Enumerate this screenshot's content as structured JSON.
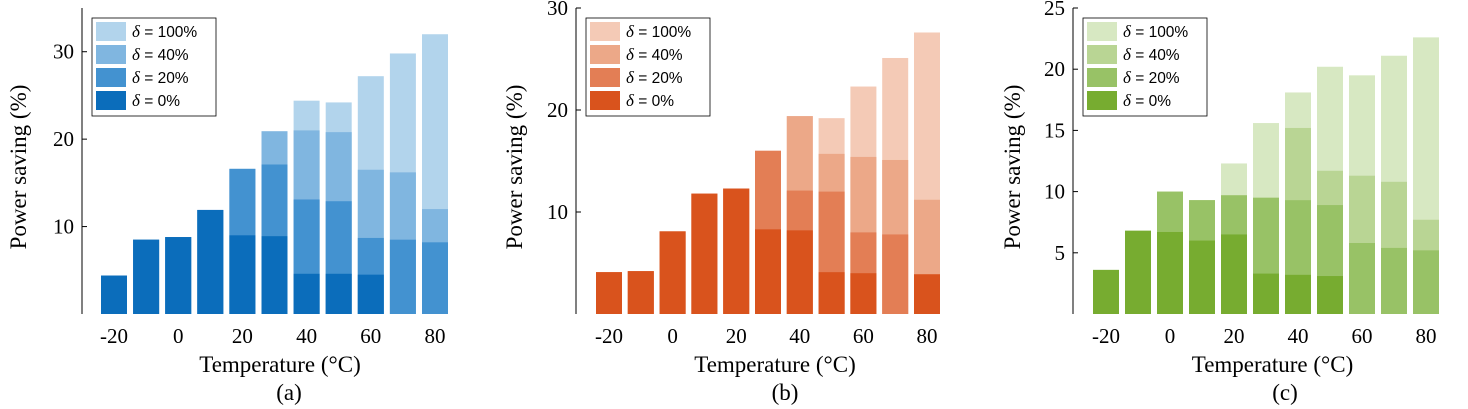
{
  "chart_data": [
    {
      "type": "bar",
      "caption": "(a)",
      "xlabel": "Temperature (°C)",
      "ylabel": "Power saving (%)",
      "x": [
        -20,
        -10,
        0,
        10,
        20,
        30,
        40,
        50,
        60,
        70,
        80
      ],
      "xticks": [
        -20,
        0,
        20,
        40,
        60,
        80
      ],
      "yticks": [
        10,
        20,
        30
      ],
      "ylim": [
        0,
        35
      ],
      "legend_position": "top-left",
      "series": [
        {
          "name": "δ = 100%",
          "color": "#b2d4ec",
          "values": [
            4.4,
            8.5,
            8.8,
            11.9,
            16.6,
            20.9,
            24.4,
            24.2,
            27.2,
            29.8,
            32.0
          ]
        },
        {
          "name": "δ = 40%",
          "color": "#80b6e0",
          "values": [
            4.4,
            8.5,
            8.8,
            11.9,
            16.6,
            20.9,
            21.0,
            20.8,
            16.5,
            16.2,
            12.0
          ]
        },
        {
          "name": "δ = 20%",
          "color": "#4392d0",
          "values": [
            4.4,
            8.5,
            8.8,
            11.9,
            16.6,
            17.1,
            13.1,
            12.9,
            8.7,
            8.5,
            8.2
          ]
        },
        {
          "name": "δ = 0%",
          "color": "#0b6dbb",
          "values": [
            4.4,
            8.5,
            8.8,
            11.9,
            9.0,
            8.9,
            4.6,
            4.6,
            4.5,
            0,
            0
          ]
        }
      ]
    },
    {
      "type": "bar",
      "caption": "(b)",
      "xlabel": "Temperature (°C)",
      "ylabel": "Power saving (%)",
      "x": [
        -20,
        -10,
        0,
        10,
        20,
        30,
        40,
        50,
        60,
        70,
        80
      ],
      "xticks": [
        -20,
        0,
        20,
        40,
        60,
        80
      ],
      "yticks": [
        10,
        20,
        30
      ],
      "ylim": [
        0,
        30
      ],
      "legend_position": "top-left",
      "series": [
        {
          "name": "δ = 100%",
          "color": "#f4cab6",
          "values": [
            4.1,
            4.2,
            8.1,
            11.8,
            12.3,
            16.0,
            19.4,
            19.2,
            22.3,
            25.1,
            27.6
          ]
        },
        {
          "name": "δ = 40%",
          "color": "#eca888",
          "values": [
            4.1,
            4.2,
            8.1,
            11.8,
            12.3,
            16.0,
            19.4,
            15.7,
            15.4,
            15.1,
            11.2
          ]
        },
        {
          "name": "δ = 20%",
          "color": "#e37e55",
          "values": [
            4.1,
            4.2,
            8.1,
            11.8,
            12.3,
            16.0,
            12.1,
            12.0,
            8.0,
            7.8,
            0
          ]
        },
        {
          "name": "δ = 0%",
          "color": "#d9531d",
          "values": [
            4.1,
            4.2,
            8.1,
            11.8,
            12.3,
            8.3,
            8.2,
            4.1,
            4.0,
            0,
            3.9
          ]
        }
      ]
    },
    {
      "type": "bar",
      "caption": "(c)",
      "xlabel": "Temperature (°C)",
      "ylabel": "Power saving (%)",
      "x": [
        -20,
        -10,
        0,
        10,
        20,
        30,
        40,
        50,
        60,
        70,
        80
      ],
      "xticks": [
        -20,
        0,
        20,
        40,
        60,
        80
      ],
      "yticks": [
        5,
        10,
        15,
        20,
        25
      ],
      "ylim": [
        0,
        25
      ],
      "legend_position": "top-left",
      "series": [
        {
          "name": "δ = 100%",
          "color": "#d7e8c2",
          "values": [
            3.6,
            6.8,
            10.0,
            9.3,
            12.3,
            15.6,
            18.1,
            20.2,
            19.5,
            21.1,
            22.6
          ]
        },
        {
          "name": "δ = 40%",
          "color": "#b9d594",
          "values": [
            3.6,
            6.8,
            10.0,
            9.3,
            9.7,
            9.5,
            15.2,
            11.7,
            11.3,
            10.8,
            7.7
          ]
        },
        {
          "name": "δ = 20%",
          "color": "#98c266",
          "values": [
            3.6,
            6.8,
            10.0,
            9.3,
            9.7,
            9.5,
            9.3,
            8.9,
            5.8,
            5.4,
            5.2
          ]
        },
        {
          "name": "δ = 0%",
          "color": "#77ac30",
          "values": [
            3.6,
            6.8,
            6.7,
            6.0,
            6.5,
            3.3,
            3.2,
            3.1,
            0,
            0,
            0
          ]
        }
      ]
    }
  ]
}
